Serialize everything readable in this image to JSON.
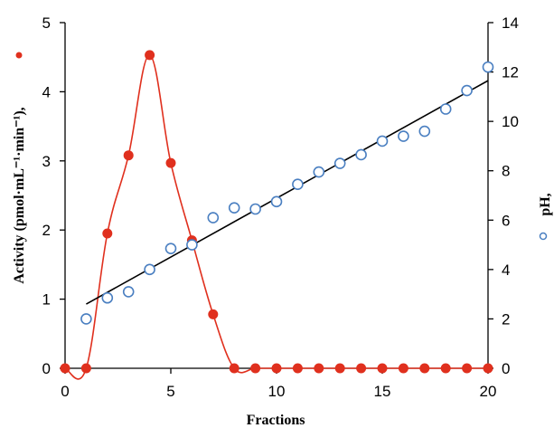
{
  "chart_data": {
    "type": "scatter",
    "title": "",
    "xlabel": "Fractions",
    "ylabel_left": "Activity (pmol·mL⁻¹·min⁻¹),",
    "ylabel_right": "pH,",
    "xlim": [
      0,
      20
    ],
    "ylim_left": [
      0,
      5
    ],
    "ylim_right": [
      0,
      14
    ],
    "x_ticks": [
      "0",
      "5",
      "10",
      "15",
      "20"
    ],
    "y_left_ticks": [
      "0",
      "1",
      "2",
      "3",
      "4",
      "5"
    ],
    "y_right_ticks": [
      "0",
      "2",
      "4",
      "6",
      "8",
      "10",
      "12",
      "14"
    ],
    "grid": false,
    "legend": "none",
    "series": [
      {
        "axis": "left",
        "marker": "filled-circle",
        "color": "#e0301e",
        "line": "smooth",
        "x": [
          0,
          1,
          2,
          3,
          4,
          5,
          6,
          7,
          8,
          9,
          10,
          11,
          12,
          13,
          14,
          15,
          16,
          17,
          18,
          19,
          20
        ],
        "y": [
          0,
          0,
          1.95,
          3.08,
          4.53,
          2.97,
          1.85,
          0.78,
          0,
          0,
          0,
          0,
          0,
          0,
          0,
          0,
          0,
          0,
          0,
          0,
          0
        ]
      },
      {
        "axis": "right",
        "marker": "open-circle",
        "color": "#4a7fc1",
        "x": [
          1,
          2,
          3,
          4,
          5,
          6,
          7,
          8,
          9,
          10,
          11,
          12,
          13,
          14,
          15,
          16,
          17,
          18,
          19,
          20
        ],
        "y": [
          2.0,
          2.85,
          3.1,
          4.0,
          4.85,
          5.0,
          6.1,
          6.5,
          6.45,
          6.75,
          7.45,
          7.95,
          8.3,
          8.65,
          9.2,
          9.4,
          9.6,
          10.5,
          11.25,
          12.2
        ]
      },
      {
        "axis": "right",
        "type": "trendline",
        "color": "#000000",
        "x": [
          1,
          20
        ],
        "y": [
          2.6,
          11.65
        ]
      }
    ]
  }
}
